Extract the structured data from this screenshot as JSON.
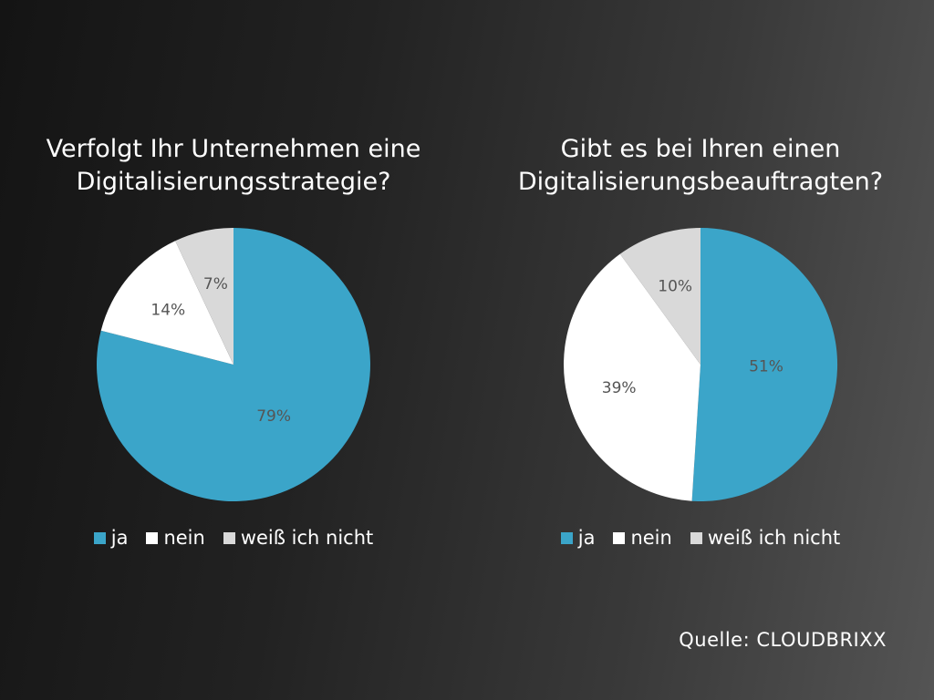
{
  "legend": {
    "ja": "ja",
    "nein": "nein",
    "weiss": "weiß ich nicht"
  },
  "colors": {
    "ja": "#3ba5c9",
    "nein": "#ffffff",
    "weiss": "#d9d9d9",
    "label": "#555555"
  },
  "source": "Quelle: CLOUDBRIXX",
  "chart_data": [
    {
      "type": "pie",
      "title_lines": [
        "Verfolgt Ihr Unternehmen eine",
        "Digitalisierungsstrategie?"
      ],
      "slices": [
        {
          "label": "ja",
          "value": 79,
          "text": "79%"
        },
        {
          "label": "nein",
          "value": 14,
          "text": "14%"
        },
        {
          "label": "weiß ich nicht",
          "value": 7,
          "text": "7%"
        }
      ],
      "legend": [
        "ja",
        "nein",
        "weiß ich nicht"
      ],
      "legend_position": "bottom"
    },
    {
      "type": "pie",
      "title_lines": [
        "Gibt es bei Ihren einen",
        "Digitalisierungsbeauftragten?"
      ],
      "slices": [
        {
          "label": "ja",
          "value": 51,
          "text": "51%"
        },
        {
          "label": "nein",
          "value": 39,
          "text": "39%"
        },
        {
          "label": "weiß ich nicht",
          "value": 10,
          "text": "10%"
        }
      ],
      "legend": [
        "ja",
        "nein",
        "weiß ich nicht"
      ],
      "legend_position": "bottom"
    }
  ]
}
